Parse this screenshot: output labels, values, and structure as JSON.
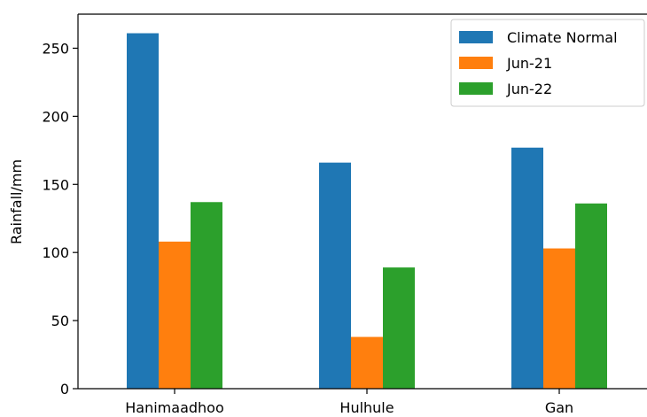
{
  "chart_data": {
    "type": "bar",
    "title": "",
    "xlabel": "",
    "ylabel": "Rainfall/mm",
    "categories": [
      "Hanimaadhoo",
      "Hulhule",
      "Gan"
    ],
    "series": [
      {
        "name": "Climate Normal",
        "color": "#1f77b4",
        "values": [
          261,
          166,
          177
        ]
      },
      {
        "name": "Jun-21",
        "color": "#ff7f0e",
        "values": [
          108,
          38,
          103
        ]
      },
      {
        "name": "Jun-22",
        "color": "#2ca02c",
        "values": [
          137,
          89,
          136
        ]
      }
    ],
    "ylim": [
      0,
      275
    ],
    "yticks": [
      0,
      50,
      100,
      150,
      200,
      250
    ],
    "grid": false,
    "legend_position": "top-right"
  }
}
